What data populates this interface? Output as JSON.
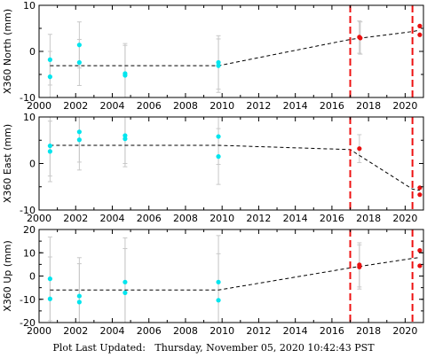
{
  "footer": {
    "label": "Plot Last Updated:",
    "timestamp": "Thursday, November 05, 2020 10:42:43 PST"
  },
  "chart_data": [
    {
      "type": "scatter",
      "ylabel": "X360 North (mm)",
      "xlim": [
        2000,
        2021
      ],
      "ylim": [
        -10,
        10
      ],
      "xticks": [
        2000,
        2002,
        2004,
        2006,
        2008,
        2010,
        2012,
        2014,
        2016,
        2018,
        2020
      ],
      "yticks": [
        -10,
        0,
        10
      ],
      "grid": false,
      "event_lines": [
        2017.0,
        2020.4
      ],
      "model_line": [
        [
          2000.6,
          -3.1
        ],
        [
          2009.8,
          -3.1
        ],
        [
          2017.0,
          2.6
        ],
        [
          2020.4,
          4.3
        ],
        [
          2020.8,
          4.6
        ]
      ],
      "campaign_points": [
        {
          "x": 2000.6,
          "y": -1.8,
          "err": 5.5
        },
        {
          "x": 2000.6,
          "y": -5.5,
          "err": 5.5
        },
        {
          "x": 2002.2,
          "y": 1.4,
          "err": 5.0
        },
        {
          "x": 2002.2,
          "y": -2.4,
          "err": 5.0
        },
        {
          "x": 2004.7,
          "y": -4.8,
          "err": 6.5
        },
        {
          "x": 2004.7,
          "y": -5.2,
          "err": 6.5
        },
        {
          "x": 2009.8,
          "y": -2.4,
          "err": 5.8
        },
        {
          "x": 2009.8,
          "y": -3.1,
          "err": 5.8
        }
      ],
      "continuous_points": [
        {
          "x": 2017.5,
          "y": 3.1,
          "err": 3.5
        },
        {
          "x": 2017.55,
          "y": 2.9,
          "err": 3.5
        },
        {
          "x": 2020.8,
          "y": 5.5,
          "err": 0
        },
        {
          "x": 2020.8,
          "y": 3.6,
          "err": 0
        }
      ]
    },
    {
      "type": "scatter",
      "ylabel": "X360 East (mm)",
      "xlim": [
        2000,
        2021
      ],
      "ylim": [
        -10,
        10
      ],
      "xticks": [
        2000,
        2002,
        2004,
        2006,
        2008,
        2010,
        2012,
        2014,
        2016,
        2018,
        2020
      ],
      "yticks": [
        -10,
        0,
        10
      ],
      "grid": false,
      "event_lines": [
        2017.0,
        2020.4
      ],
      "model_line": [
        [
          2000.6,
          3.9
        ],
        [
          2009.8,
          3.9
        ],
        [
          2017.0,
          3.0
        ],
        [
          2020.4,
          -5.5
        ],
        [
          2020.8,
          -5.8
        ]
      ],
      "campaign_points": [
        {
          "x": 2000.6,
          "y": 3.8,
          "err": 6.5
        },
        {
          "x": 2000.6,
          "y": 2.6,
          "err": 6.5
        },
        {
          "x": 2002.2,
          "y": 6.8,
          "err": 6.5
        },
        {
          "x": 2002.2,
          "y": 5.1,
          "err": 6.5
        },
        {
          "x": 2004.7,
          "y": 6.0,
          "err": 6.0
        },
        {
          "x": 2004.7,
          "y": 5.3,
          "err": 6.0
        },
        {
          "x": 2009.8,
          "y": 5.8,
          "err": 6.0
        },
        {
          "x": 2009.8,
          "y": 1.5,
          "err": 6.0
        }
      ],
      "continuous_points": [
        {
          "x": 2017.5,
          "y": 3.2,
          "err": 3.0
        },
        {
          "x": 2020.8,
          "y": -5.2,
          "err": 0
        },
        {
          "x": 2020.8,
          "y": -6.7,
          "err": 0
        }
      ]
    },
    {
      "type": "scatter",
      "ylabel": "X360 Up (mm)",
      "xlim": [
        2000,
        2021
      ],
      "ylim": [
        -20,
        20
      ],
      "xticks": [
        2000,
        2002,
        2004,
        2006,
        2008,
        2010,
        2012,
        2014,
        2016,
        2018,
        2020
      ],
      "yticks": [
        -20,
        -10,
        0,
        10,
        20
      ],
      "grid": false,
      "event_lines": [
        2017.0,
        2020.4
      ],
      "model_line": [
        [
          2000.6,
          -6.0
        ],
        [
          2009.8,
          -6.0
        ],
        [
          2017.0,
          3.5
        ],
        [
          2020.4,
          7.6
        ],
        [
          2020.8,
          8.0
        ]
      ],
      "campaign_points": [
        {
          "x": 2000.6,
          "y": -1.2,
          "err": 18
        },
        {
          "x": 2000.6,
          "y": -9.8,
          "err": 18
        },
        {
          "x": 2002.2,
          "y": -8.6,
          "err": 16.5
        },
        {
          "x": 2002.2,
          "y": -11.2,
          "err": 16.5
        },
        {
          "x": 2004.7,
          "y": -2.6,
          "err": 19
        },
        {
          "x": 2004.7,
          "y": -7.2,
          "err": 19
        },
        {
          "x": 2009.8,
          "y": -2.6,
          "err": 20
        },
        {
          "x": 2009.8,
          "y": -10.4,
          "err": 20
        }
      ],
      "continuous_points": [
        {
          "x": 2017.5,
          "y": 4.8,
          "err": 9.5
        },
        {
          "x": 2017.5,
          "y": 3.9,
          "err": 9.5
        },
        {
          "x": 2020.8,
          "y": 11.0,
          "err": 0
        },
        {
          "x": 2020.8,
          "y": 4.4,
          "err": 0
        }
      ]
    }
  ],
  "colors": {
    "campaign": "#00e5ee",
    "continuous": "#e81010",
    "event_line": "#ee1111",
    "error_bar": "#c8c8c8",
    "model_line": "#000000"
  }
}
